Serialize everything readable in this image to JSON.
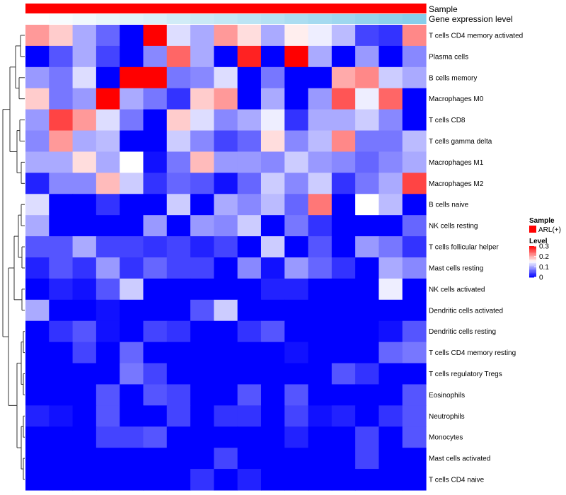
{
  "chart_data": {
    "type": "heatmap",
    "title": "",
    "column_annotations": [
      {
        "label": "Sample",
        "color": "#FF0000"
      },
      {
        "label": "Gene expression level",
        "gradient": [
          "#FFFFFF",
          "#87CEEB"
        ]
      }
    ],
    "rows": [
      "T cells CD4 memory activated",
      "Plasma cells",
      "B cells memory",
      "Macrophages M0",
      "T cells CD8",
      "T cells gamma delta",
      "Macrophages M1",
      "Macrophages M2",
      "B cells naive",
      "NK cells resting",
      "T cells follicular helper",
      "Mast cells resting",
      "NK cells activated",
      "Dendritic cells activated",
      "Dendritic cells resting",
      "T cells CD4 memory resting",
      "T cells regulatory  Tregs",
      "Eosinophils",
      "Neutrophils",
      "Monocytes",
      "Mast cells activated",
      "T cells CD4 naive"
    ],
    "values": [
      [
        0.21,
        0.18,
        0.1,
        0.06,
        0.0,
        0.3,
        0.13,
        0.1,
        0.21,
        0.17,
        0.1,
        0.16,
        0.14,
        0.11,
        0.04,
        0.03,
        0.22
      ],
      [
        0.0,
        0.05,
        0.1,
        0.04,
        0.0,
        0.08,
        0.24,
        0.1,
        0.0,
        0.28,
        0.0,
        0.3,
        0.1,
        0.0,
        0.09,
        0.0,
        0.08
      ],
      [
        0.09,
        0.07,
        0.13,
        0.0,
        0.3,
        0.3,
        0.07,
        0.08,
        0.13,
        0.0,
        0.07,
        0.0,
        0.0,
        0.2,
        0.22,
        0.12,
        0.1
      ],
      [
        0.18,
        0.07,
        0.09,
        0.3,
        0.1,
        0.07,
        0.03,
        0.18,
        0.21,
        0.0,
        0.1,
        0.0,
        0.09,
        0.25,
        0.14,
        0.24,
        0.0
      ],
      [
        0.09,
        0.26,
        0.21,
        0.13,
        0.07,
        0.0,
        0.18,
        0.13,
        0.08,
        0.1,
        0.14,
        0.03,
        0.1,
        0.1,
        0.12,
        0.08,
        0.0
      ],
      [
        0.08,
        0.21,
        0.1,
        0.11,
        0.0,
        0.0,
        0.12,
        0.08,
        0.04,
        0.06,
        0.17,
        0.08,
        0.11,
        0.22,
        0.07,
        0.07,
        0.11
      ],
      [
        0.1,
        0.1,
        0.17,
        0.1,
        0.15,
        0.01,
        0.07,
        0.19,
        0.09,
        0.09,
        0.08,
        0.12,
        0.09,
        0.08,
        0.06,
        0.08,
        0.1
      ],
      [
        0.02,
        0.08,
        0.08,
        0.19,
        0.12,
        0.03,
        0.06,
        0.05,
        0.01,
        0.06,
        0.12,
        0.08,
        0.12,
        0.03,
        0.07,
        0.1,
        0.26
      ],
      [
        0.13,
        0.0,
        0.0,
        0.03,
        0.0,
        0.0,
        0.12,
        0.0,
        0.1,
        0.08,
        0.11,
        0.06,
        0.23,
        0.0,
        0.15,
        0.11,
        0.0
      ],
      [
        0.1,
        0.0,
        0.0,
        0.0,
        0.0,
        0.09,
        0.0,
        0.09,
        0.08,
        0.12,
        0.0,
        0.07,
        0.03,
        0.0,
        0.0,
        0.0,
        0.06
      ],
      [
        0.05,
        0.05,
        0.1,
        0.04,
        0.04,
        0.03,
        0.04,
        0.02,
        0.04,
        0.0,
        0.12,
        0.0,
        0.05,
        0.0,
        0.09,
        0.07,
        0.03
      ],
      [
        0.02,
        0.05,
        0.03,
        0.09,
        0.03,
        0.06,
        0.04,
        0.04,
        0.0,
        0.08,
        0.01,
        0.09,
        0.06,
        0.03,
        0.0,
        0.1,
        0.08
      ],
      [
        0.0,
        0.02,
        0.01,
        0.05,
        0.12,
        0.0,
        0.0,
        0.0,
        0.0,
        0.0,
        0.02,
        0.02,
        0.0,
        0.0,
        0.0,
        0.14,
        0.0
      ],
      [
        0.1,
        0.0,
        0.0,
        0.01,
        0.0,
        0.0,
        0.0,
        0.05,
        0.12,
        0.0,
        0.0,
        0.0,
        0.0,
        0.0,
        0.0,
        0.0,
        0.0
      ],
      [
        0.0,
        0.03,
        0.05,
        0.01,
        0.0,
        0.04,
        0.03,
        0.0,
        0.0,
        0.03,
        0.05,
        0.0,
        0.0,
        0.0,
        0.0,
        0.01,
        0.05
      ],
      [
        0.0,
        0.0,
        0.04,
        0.0,
        0.06,
        0.0,
        0.0,
        0.0,
        0.0,
        0.0,
        0.0,
        0.01,
        0.0,
        0.0,
        0.0,
        0.06,
        0.07
      ],
      [
        0.0,
        0.0,
        0.0,
        0.0,
        0.07,
        0.04,
        0.0,
        0.0,
        0.0,
        0.0,
        0.0,
        0.0,
        0.0,
        0.05,
        0.03,
        0.0,
        0.0
      ],
      [
        0.0,
        0.0,
        0.0,
        0.05,
        0.0,
        0.05,
        0.04,
        0.0,
        0.0,
        0.05,
        0.0,
        0.05,
        0.0,
        0.0,
        0.0,
        0.0,
        0.05
      ],
      [
        0.02,
        0.01,
        0.0,
        0.05,
        0.0,
        0.0,
        0.04,
        0.0,
        0.03,
        0.03,
        0.0,
        0.04,
        0.01,
        0.02,
        0.0,
        0.03,
        0.05
      ],
      [
        0.0,
        0.0,
        0.0,
        0.04,
        0.04,
        0.05,
        0.0,
        0.0,
        0.0,
        0.0,
        0.0,
        0.02,
        0.0,
        0.0,
        0.04,
        0.0,
        0.05
      ],
      [
        0.0,
        0.0,
        0.0,
        0.0,
        0.0,
        0.0,
        0.0,
        0.0,
        0.04,
        0.0,
        0.0,
        0.0,
        0.0,
        0.0,
        0.04,
        0.0,
        0.0
      ],
      [
        0.0,
        0.0,
        0.0,
        0.0,
        0.0,
        0.0,
        0.0,
        0.03,
        0.0,
        0.02,
        0.0,
        0.0,
        0.0,
        0.0,
        0.0,
        0.0,
        0.0
      ]
    ],
    "gene_expression_level": [
      0.0,
      0.06,
      0.12,
      0.19,
      0.25,
      0.31,
      0.38,
      0.44,
      0.5,
      0.56,
      0.62,
      0.69,
      0.75,
      0.81,
      0.88,
      0.94,
      1.0
    ],
    "color_scale": {
      "low": "#0000FF",
      "mid": "#FFFFFF",
      "high": "#FF0000",
      "range": [
        0,
        0.3
      ]
    },
    "legend": {
      "sample_title": "Sample",
      "sample_entry": "ARL(+)",
      "sample_color": "#FF0000",
      "level_title": "Level",
      "ticks": [
        {
          "value": 0.3,
          "label": "0.3"
        },
        {
          "value": 0.2,
          "label": "0.2"
        },
        {
          "value": 0.1,
          "label": "0.1"
        },
        {
          "value": 0,
          "label": "0"
        }
      ]
    }
  }
}
